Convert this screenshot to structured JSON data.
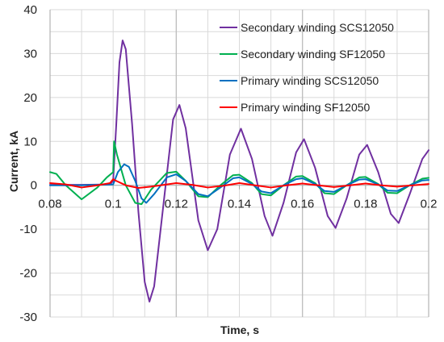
{
  "chart_data": {
    "type": "line",
    "xlabel": "Time, s",
    "ylabel": "Current, kA",
    "xlim": [
      0.08,
      0.2
    ],
    "ylim": [
      -30,
      40
    ],
    "x_ticks": [
      "0.08",
      "0.1",
      "0.12",
      "0.14",
      "0.16",
      "0.18",
      "0.2"
    ],
    "y_ticks": [
      "-30",
      "-20",
      "-10",
      "0",
      "10",
      "20",
      "30",
      "40"
    ],
    "grid": true,
    "legend_position": "top-right",
    "colors": {
      "grid": "#d9d9d9",
      "grid_major": "#bfbfbf",
      "axis": "#a6a6a6"
    },
    "series": [
      {
        "name": "Secondary winding SCS12050",
        "color": "#7030a0",
        "points": [
          [
            0.08,
            0.1
          ],
          [
            0.09,
            0.1
          ],
          [
            0.099,
            0.2
          ],
          [
            0.1,
            1
          ],
          [
            0.101,
            14
          ],
          [
            0.102,
            28
          ],
          [
            0.103,
            33
          ],
          [
            0.104,
            31
          ],
          [
            0.106,
            14
          ],
          [
            0.108,
            -6
          ],
          [
            0.11,
            -22
          ],
          [
            0.1115,
            -26.5
          ],
          [
            0.113,
            -23
          ],
          [
            0.116,
            -4
          ],
          [
            0.119,
            15
          ],
          [
            0.121,
            18.3
          ],
          [
            0.123,
            13
          ],
          [
            0.127,
            -8
          ],
          [
            0.13,
            -14.8
          ],
          [
            0.133,
            -10
          ],
          [
            0.137,
            7
          ],
          [
            0.1405,
            12.9
          ],
          [
            0.144,
            6
          ],
          [
            0.148,
            -7
          ],
          [
            0.1505,
            -11.5
          ],
          [
            0.154,
            -4
          ],
          [
            0.158,
            7.5
          ],
          [
            0.1605,
            10.5
          ],
          [
            0.164,
            4
          ],
          [
            0.168,
            -7
          ],
          [
            0.1705,
            -9.7
          ],
          [
            0.174,
            -3
          ],
          [
            0.178,
            7
          ],
          [
            0.1805,
            9.2
          ],
          [
            0.184,
            3
          ],
          [
            0.188,
            -6.5
          ],
          [
            0.1905,
            -8.6
          ],
          [
            0.194,
            -2
          ],
          [
            0.198,
            6
          ],
          [
            0.2,
            8
          ]
        ]
      },
      {
        "name": "Secondary winding SF12050",
        "color": "#00b050",
        "points": [
          [
            0.08,
            3
          ],
          [
            0.082,
            2.6
          ],
          [
            0.085,
            0
          ],
          [
            0.09,
            -3.2
          ],
          [
            0.095,
            -0.5
          ],
          [
            0.098,
            1.8
          ],
          [
            0.1,
            3
          ],
          [
            0.1003,
            10
          ],
          [
            0.1012,
            7
          ],
          [
            0.104,
            0
          ],
          [
            0.107,
            -4
          ],
          [
            0.109,
            -4.3
          ],
          [
            0.112,
            -1
          ],
          [
            0.117,
            2.8
          ],
          [
            0.12,
            3.1
          ],
          [
            0.123,
            1
          ],
          [
            0.127,
            -2.5
          ],
          [
            0.13,
            -2.7
          ],
          [
            0.134,
            0
          ],
          [
            0.138,
            2.3
          ],
          [
            0.14,
            2.4
          ],
          [
            0.144,
            0.5
          ],
          [
            0.147,
            -2
          ],
          [
            0.15,
            -2.3
          ],
          [
            0.154,
            0
          ],
          [
            0.158,
            2
          ],
          [
            0.16,
            2.1
          ],
          [
            0.164,
            0.5
          ],
          [
            0.167,
            -1.8
          ],
          [
            0.17,
            -2
          ],
          [
            0.174,
            0
          ],
          [
            0.178,
            1.8
          ],
          [
            0.18,
            1.9
          ],
          [
            0.184,
            0.3
          ],
          [
            0.187,
            -1.7
          ],
          [
            0.19,
            -1.8
          ],
          [
            0.194,
            0
          ],
          [
            0.198,
            1.5
          ],
          [
            0.2,
            1.7
          ]
        ]
      },
      {
        "name": "Primary winding SCS12050",
        "color": "#0070c0",
        "points": [
          [
            0.08,
            0
          ],
          [
            0.09,
            0
          ],
          [
            0.1,
            0.2
          ],
          [
            0.1015,
            3
          ],
          [
            0.1035,
            4.8
          ],
          [
            0.105,
            4.2
          ],
          [
            0.107,
            1
          ],
          [
            0.109,
            -3
          ],
          [
            0.1105,
            -4
          ],
          [
            0.113,
            -2
          ],
          [
            0.117,
            1.8
          ],
          [
            0.12,
            2.5
          ],
          [
            0.123,
            1
          ],
          [
            0.127,
            -2
          ],
          [
            0.13,
            -2.5
          ],
          [
            0.134,
            -0.5
          ],
          [
            0.138,
            1.6
          ],
          [
            0.14,
            1.8
          ],
          [
            0.144,
            0.3
          ],
          [
            0.147,
            -1.4
          ],
          [
            0.15,
            -1.8
          ],
          [
            0.154,
            0
          ],
          [
            0.158,
            1.4
          ],
          [
            0.16,
            1.6
          ],
          [
            0.164,
            0.3
          ],
          [
            0.167,
            -1.3
          ],
          [
            0.17,
            -1.5
          ],
          [
            0.174,
            0
          ],
          [
            0.178,
            1.3
          ],
          [
            0.18,
            1.4
          ],
          [
            0.184,
            0.2
          ],
          [
            0.187,
            -1.2
          ],
          [
            0.19,
            -1.3
          ],
          [
            0.194,
            0
          ],
          [
            0.198,
            1.1
          ],
          [
            0.2,
            1.2
          ]
        ]
      },
      {
        "name": "Primary winding SF12050",
        "color": "#ff0000",
        "points": [
          [
            0.08,
            0.5
          ],
          [
            0.085,
            0.2
          ],
          [
            0.09,
            -0.5
          ],
          [
            0.095,
            0
          ],
          [
            0.099,
            0.5
          ],
          [
            0.1,
            1.4
          ],
          [
            0.101,
            1
          ],
          [
            0.104,
            0
          ],
          [
            0.108,
            -0.6
          ],
          [
            0.112,
            -0.3
          ],
          [
            0.12,
            0.5
          ],
          [
            0.125,
            0.1
          ],
          [
            0.13,
            -0.5
          ],
          [
            0.135,
            -0.1
          ],
          [
            0.14,
            0.5
          ],
          [
            0.145,
            0
          ],
          [
            0.15,
            -0.5
          ],
          [
            0.155,
            0
          ],
          [
            0.16,
            0.4
          ],
          [
            0.165,
            0
          ],
          [
            0.17,
            -0.4
          ],
          [
            0.175,
            0
          ],
          [
            0.18,
            0.4
          ],
          [
            0.185,
            0
          ],
          [
            0.19,
            -0.3
          ],
          [
            0.195,
            0
          ],
          [
            0.2,
            0.3
          ]
        ]
      }
    ]
  }
}
